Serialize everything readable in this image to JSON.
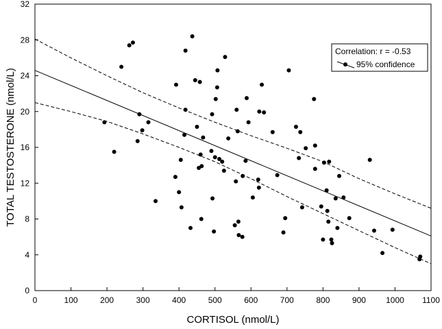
{
  "chart_data": {
    "type": "scatter",
    "xlabel": "CORTISOL (nmol/L)",
    "ylabel": "TOTAL TESTOSTERONE (nmol/L)",
    "xlim": [
      0,
      1100
    ],
    "ylim": [
      0,
      32
    ],
    "x_ticks": [
      0,
      100,
      200,
      300,
      400,
      500,
      600,
      700,
      800,
      900,
      1000,
      1100
    ],
    "y_ticks": [
      0,
      4,
      8,
      12,
      16,
      20,
      24,
      28,
      32
    ],
    "grid": false,
    "legend": {
      "placement": "top-right",
      "correlation_label": "Correlation: r = -0.53",
      "confidence_label": "95% confidence"
    },
    "points": [
      {
        "x": 193,
        "y": 18.8
      },
      {
        "x": 220,
        "y": 15.5
      },
      {
        "x": 240,
        "y": 25.0
      },
      {
        "x": 262,
        "y": 27.4
      },
      {
        "x": 272,
        "y": 27.7
      },
      {
        "x": 285,
        "y": 16.7
      },
      {
        "x": 290,
        "y": 19.7
      },
      {
        "x": 298,
        "y": 17.9
      },
      {
        "x": 315,
        "y": 18.8
      },
      {
        "x": 335,
        "y": 10.0
      },
      {
        "x": 390,
        "y": 12.7
      },
      {
        "x": 392,
        "y": 23.0
      },
      {
        "x": 400,
        "y": 11.0
      },
      {
        "x": 405,
        "y": 14.6
      },
      {
        "x": 407,
        "y": 9.3
      },
      {
        "x": 415,
        "y": 17.4
      },
      {
        "x": 418,
        "y": 26.8
      },
      {
        "x": 418,
        "y": 20.2
      },
      {
        "x": 432,
        "y": 7.0
      },
      {
        "x": 437,
        "y": 28.4
      },
      {
        "x": 445,
        "y": 23.5
      },
      {
        "x": 450,
        "y": 18.3
      },
      {
        "x": 455,
        "y": 13.7
      },
      {
        "x": 458,
        "y": 23.3
      },
      {
        "x": 460,
        "y": 15.2
      },
      {
        "x": 462,
        "y": 8.0
      },
      {
        "x": 463,
        "y": 13.9
      },
      {
        "x": 467,
        "y": 17.1
      },
      {
        "x": 490,
        "y": 15.6
      },
      {
        "x": 492,
        "y": 19.7
      },
      {
        "x": 493,
        "y": 10.3
      },
      {
        "x": 497,
        "y": 6.6
      },
      {
        "x": 500,
        "y": 14.9
      },
      {
        "x": 502,
        "y": 21.4
      },
      {
        "x": 506,
        "y": 22.7
      },
      {
        "x": 507,
        "y": 24.6
      },
      {
        "x": 512,
        "y": 14.7
      },
      {
        "x": 520,
        "y": 14.4
      },
      {
        "x": 525,
        "y": 13.4
      },
      {
        "x": 528,
        "y": 26.1
      },
      {
        "x": 537,
        "y": 17.0
      },
      {
        "x": 555,
        "y": 7.3
      },
      {
        "x": 558,
        "y": 12.2
      },
      {
        "x": 560,
        "y": 20.2
      },
      {
        "x": 563,
        "y": 17.8
      },
      {
        "x": 565,
        "y": 7.7
      },
      {
        "x": 566,
        "y": 6.2
      },
      {
        "x": 576,
        "y": 6.0
      },
      {
        "x": 577,
        "y": 12.8
      },
      {
        "x": 585,
        "y": 14.5
      },
      {
        "x": 588,
        "y": 21.5
      },
      {
        "x": 593,
        "y": 18.8
      },
      {
        "x": 605,
        "y": 10.4
      },
      {
        "x": 620,
        "y": 12.4
      },
      {
        "x": 622,
        "y": 11.5
      },
      {
        "x": 623,
        "y": 20.0
      },
      {
        "x": 630,
        "y": 23.0
      },
      {
        "x": 636,
        "y": 19.9
      },
      {
        "x": 660,
        "y": 17.7
      },
      {
        "x": 673,
        "y": 12.9
      },
      {
        "x": 690,
        "y": 6.5
      },
      {
        "x": 695,
        "y": 8.1
      },
      {
        "x": 705,
        "y": 24.6
      },
      {
        "x": 725,
        "y": 18.3
      },
      {
        "x": 733,
        "y": 14.8
      },
      {
        "x": 737,
        "y": 17.7
      },
      {
        "x": 742,
        "y": 9.3
      },
      {
        "x": 752,
        "y": 15.9
      },
      {
        "x": 775,
        "y": 21.4
      },
      {
        "x": 778,
        "y": 16.2
      },
      {
        "x": 778,
        "y": 13.6
      },
      {
        "x": 795,
        "y": 9.4
      },
      {
        "x": 800,
        "y": 5.7
      },
      {
        "x": 803,
        "y": 14.3
      },
      {
        "x": 810,
        "y": 11.2
      },
      {
        "x": 812,
        "y": 8.9
      },
      {
        "x": 815,
        "y": 7.7
      },
      {
        "x": 817,
        "y": 14.4
      },
      {
        "x": 823,
        "y": 5.7
      },
      {
        "x": 825,
        "y": 5.3
      },
      {
        "x": 835,
        "y": 10.3
      },
      {
        "x": 840,
        "y": 7.0
      },
      {
        "x": 845,
        "y": 12.8
      },
      {
        "x": 857,
        "y": 10.4
      },
      {
        "x": 873,
        "y": 8.1
      },
      {
        "x": 930,
        "y": 14.6
      },
      {
        "x": 942,
        "y": 6.7
      },
      {
        "x": 965,
        "y": 4.2
      },
      {
        "x": 993,
        "y": 6.8
      },
      {
        "x": 1068,
        "y": 3.5
      },
      {
        "x": 1070,
        "y": 3.8
      }
    ],
    "regression_line": {
      "x": [
        0,
        1100
      ],
      "y": [
        24.6,
        6.1
      ]
    },
    "confidence_upper": {
      "x": [
        0,
        100,
        200,
        300,
        400,
        500,
        600,
        700,
        800,
        900,
        1000,
        1100
      ],
      "y": [
        28.1,
        26.0,
        24.0,
        22.1,
        20.4,
        18.8,
        17.3,
        15.9,
        14.4,
        12.5,
        10.8,
        9.2
      ]
    },
    "confidence_lower": {
      "x": [
        0,
        100,
        200,
        300,
        400,
        500,
        600,
        700,
        800,
        900,
        1000,
        1100
      ],
      "y": [
        21.0,
        20.0,
        18.9,
        17.5,
        16.0,
        14.4,
        12.5,
        10.5,
        8.6,
        6.7,
        4.8,
        3.0
      ]
    }
  }
}
